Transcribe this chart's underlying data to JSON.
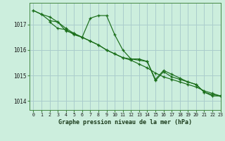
{
  "background_color": "#cceedd",
  "grid_color": "#aacccc",
  "line_color": "#1a6e1a",
  "marker_color": "#1a6e1a",
  "title": "Graphe pression niveau de la mer (hPa)",
  "xlim": [
    -0.5,
    23
  ],
  "ylim": [
    1013.65,
    1017.85
  ],
  "yticks": [
    1014,
    1015,
    1016,
    1017
  ],
  "xticks": [
    0,
    1,
    2,
    3,
    4,
    5,
    6,
    7,
    8,
    9,
    10,
    11,
    12,
    13,
    14,
    15,
    16,
    17,
    18,
    19,
    20,
    21,
    22,
    23
  ],
  "series": [
    {
      "x": [
        0,
        1,
        2,
        3,
        4,
        5,
        6,
        7,
        8,
        9,
        10,
        11,
        12,
        13,
        14,
        15,
        16,
        17,
        18,
        19,
        20,
        21,
        22,
        23
      ],
      "y": [
        1017.55,
        1017.4,
        1017.3,
        1017.1,
        1016.85,
        1016.65,
        1016.5,
        1016.35,
        1016.2,
        1016.0,
        1015.85,
        1015.7,
        1015.6,
        1015.45,
        1015.3,
        1015.1,
        1014.95,
        1014.85,
        1014.75,
        1014.65,
        1014.55,
        1014.4,
        1014.3,
        1014.2
      ]
    },
    {
      "x": [
        0,
        1,
        2,
        3,
        4,
        5,
        6,
        7,
        8,
        9,
        10,
        11,
        12,
        13,
        14,
        15,
        16,
        17,
        18,
        19,
        20,
        21,
        22,
        23
      ],
      "y": [
        1017.55,
        1017.4,
        1017.15,
        1017.1,
        1016.75,
        1016.65,
        1016.5,
        1017.25,
        1017.35,
        1017.35,
        1016.6,
        1016.0,
        1015.65,
        1015.65,
        1015.55,
        1014.8,
        1015.15,
        1014.95,
        1014.85,
        1014.75,
        1014.65,
        1014.35,
        1014.2,
        1014.2
      ]
    },
    {
      "x": [
        2,
        3,
        4,
        5,
        6,
        7,
        8,
        9,
        10,
        11,
        12,
        13,
        14,
        15,
        16,
        17,
        18,
        19,
        20,
        21,
        22,
        23
      ],
      "y": [
        1017.1,
        1016.85,
        1016.8,
        1016.6,
        1016.5,
        1016.35,
        1016.2,
        1016.0,
        1015.85,
        1015.7,
        1015.65,
        1015.6,
        1015.55,
        1014.85,
        1015.2,
        1015.05,
        1014.9,
        1014.75,
        1014.65,
        1014.35,
        1014.25,
        1014.2
      ]
    }
  ]
}
